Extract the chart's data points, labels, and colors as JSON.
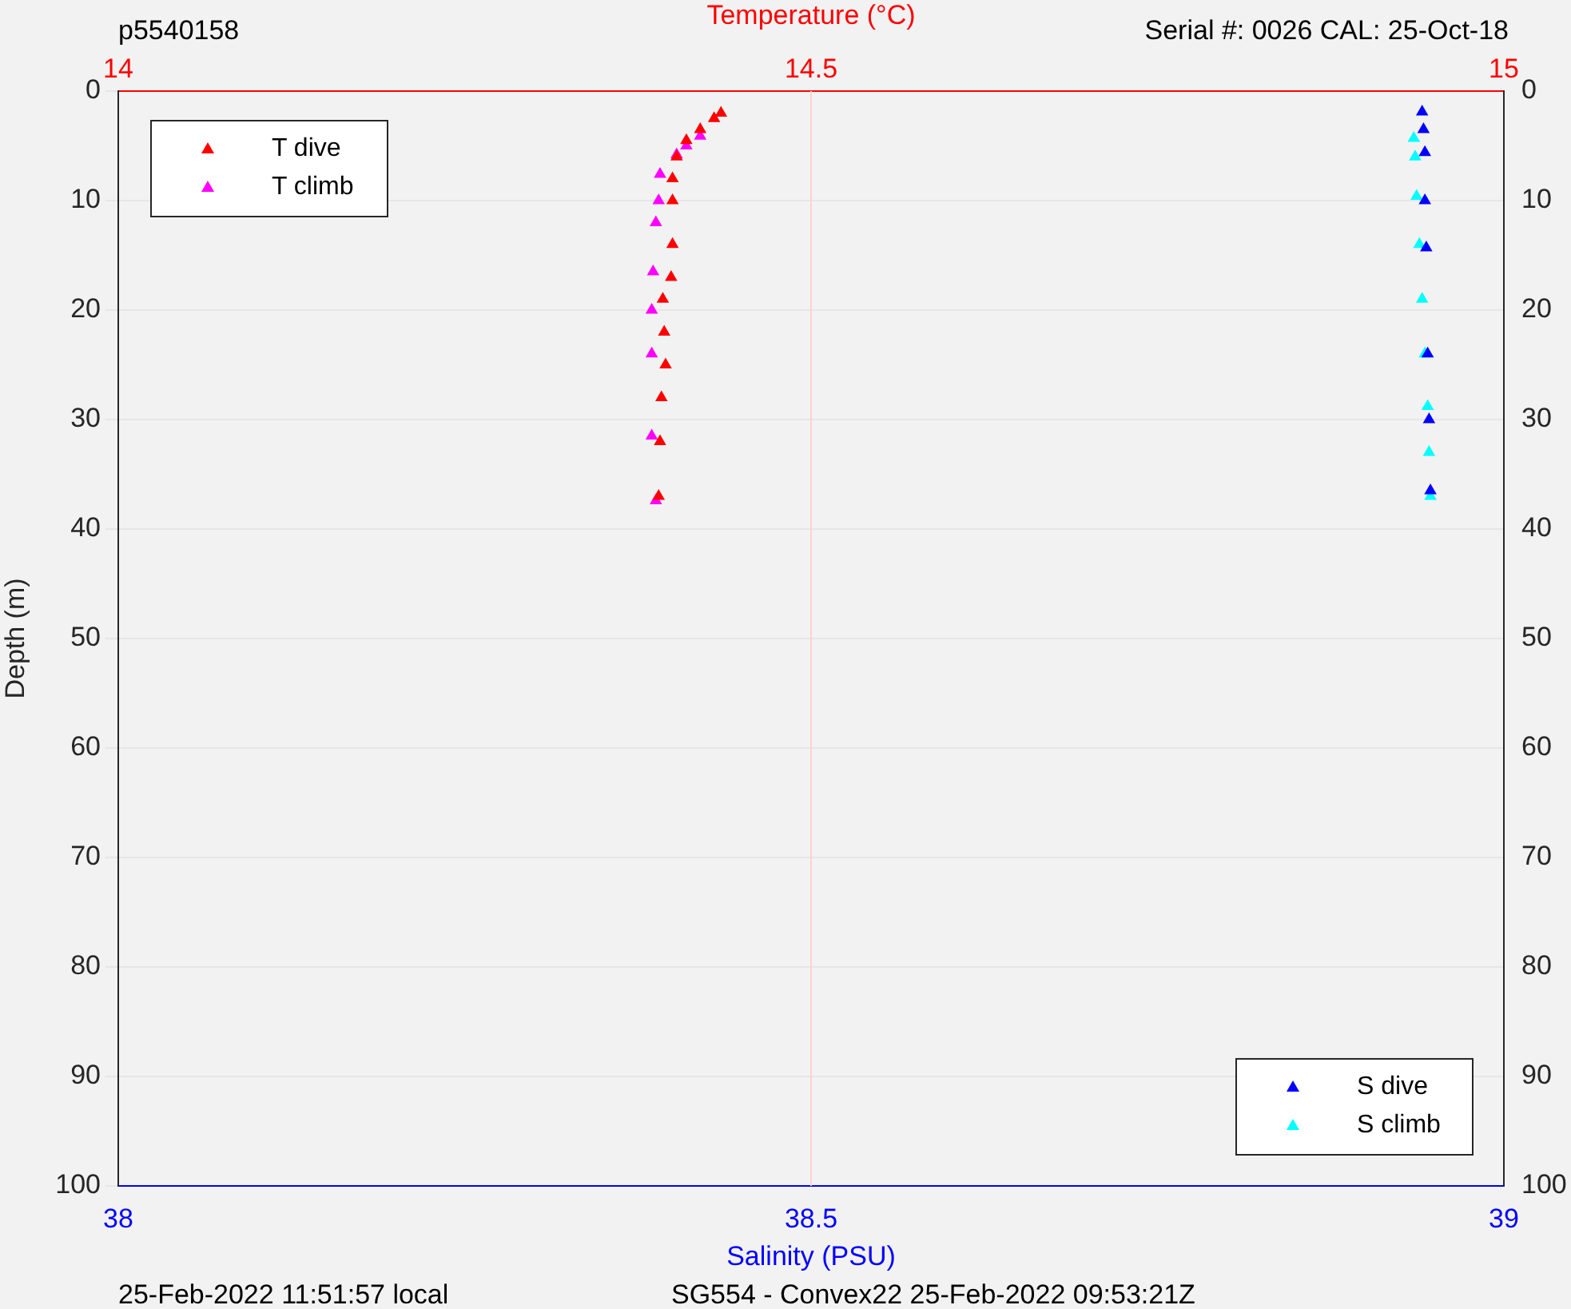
{
  "chart_data": {
    "type": "scatter",
    "x2label": "Temperature (°C)",
    "xlabel": "Salinity (PSU)",
    "ylabel": "Depth (m)",
    "annotations": [
      "p5540158",
      "Serial #: 0026 CAL: 25-Oct-18",
      "25-Feb-2022 11:51:57 local",
      "SG554 - Convex22 25-Feb-2022 09:53:21Z"
    ],
    "xlim": [
      38,
      39
    ],
    "xticks": [
      38,
      38.5,
      39
    ],
    "x2lim": [
      14,
      15
    ],
    "x2ticks": [
      14,
      14.5,
      15
    ],
    "ylim": [
      100,
      0
    ],
    "yticks": [
      0,
      10,
      20,
      30,
      40,
      50,
      60,
      70,
      80,
      90,
      100
    ],
    "y2lim": [
      100,
      0
    ],
    "y2ticks": [
      0,
      10,
      20,
      30,
      40,
      50,
      60,
      70,
      80,
      90,
      100
    ],
    "grid": "y",
    "ref_lines": [
      {
        "axis": "x",
        "value": 38.5,
        "color": "#ffd0d0"
      }
    ],
    "marker": "triangle",
    "legend": "top left",
    "series": [
      {
        "name": "T dive",
        "color": "#ff0000",
        "axis": "x2",
        "x": [
          14.435,
          14.43,
          14.42,
          14.41,
          14.403,
          14.4,
          14.4,
          14.4,
          14.399,
          14.393,
          14.394,
          14.395,
          14.392,
          14.391,
          14.39
        ],
        "values": [
          2,
          2.5,
          3.5,
          4.5,
          6,
          8,
          10,
          14,
          17,
          19,
          22,
          25,
          28,
          32,
          37
        ]
      },
      {
        "name": "T climb",
        "color": "#ff00ff",
        "axis": "x2",
        "x": [
          14.42,
          14.41,
          14.403,
          14.391,
          14.39,
          14.388,
          14.386,
          14.385,
          14.385,
          14.385,
          14.388
        ],
        "values": [
          4.1,
          5,
          5.8,
          7.6,
          10,
          12,
          16.5,
          20,
          24,
          31.5,
          37.4
        ]
      },
      {
        "name": "S dive",
        "color": "#0000ff",
        "x": [
          38.941,
          38.942,
          38.943,
          38.943,
          38.944,
          38.945,
          38.946,
          38.947
        ],
        "values": [
          1.9,
          3.5,
          5.6,
          10,
          14.3,
          24,
          30,
          36.5
        ]
      },
      {
        "name": "S climb",
        "color": "#00ffff",
        "x": [
          38.935,
          38.936,
          38.937,
          38.939,
          38.941,
          38.943,
          38.945,
          38.946,
          38.947
        ],
        "values": [
          4.3,
          6,
          9.6,
          14,
          19,
          24,
          28.8,
          33,
          37
        ]
      }
    ]
  }
}
